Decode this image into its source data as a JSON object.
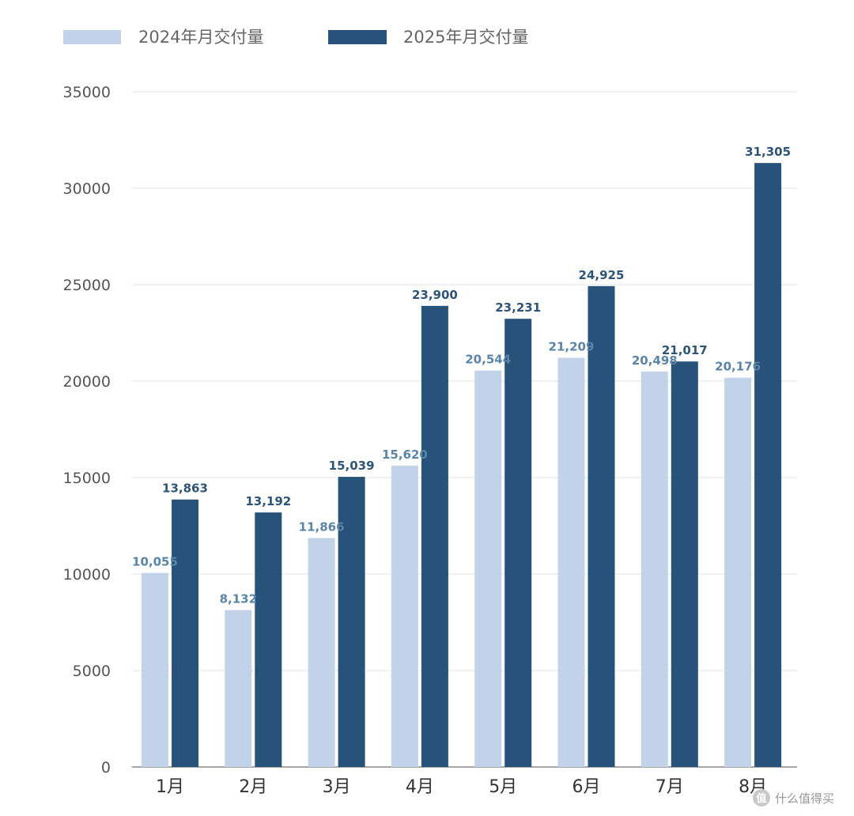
{
  "chart_data": {
    "type": "bar",
    "categories": [
      "1月",
      "2月",
      "3月",
      "4月",
      "5月",
      "6月",
      "7月",
      "8月"
    ],
    "series": [
      {
        "name": "2024年月交付量",
        "color": "#C2D3E9",
        "values": [
          10055,
          8132,
          11866,
          15620,
          20544,
          21209,
          20498,
          20176
        ],
        "labels": [
          "10,055",
          "8,132",
          "11,866",
          "15,620",
          "20,544",
          "21,209",
          "20,498",
          "20,176"
        ]
      },
      {
        "name": "2025年月交付量",
        "color": "#27527A",
        "values": [
          13863,
          13192,
          15039,
          23900,
          23231,
          24925,
          21017,
          31305
        ],
        "labels": [
          "13,863",
          "13,192",
          "15,039",
          "23,900",
          "23,231",
          "24,925",
          "21,017",
          "31,305"
        ]
      }
    ],
    "yticks": [
      "0",
      "5000",
      "10000",
      "15000",
      "20000",
      "25000",
      "30000",
      "35000"
    ],
    "ylim": [
      0,
      35000
    ],
    "grid": true,
    "legend_position": "top-left",
    "title": "",
    "xlabel": "",
    "ylabel": ""
  },
  "watermark": {
    "text": "什么值得买"
  }
}
